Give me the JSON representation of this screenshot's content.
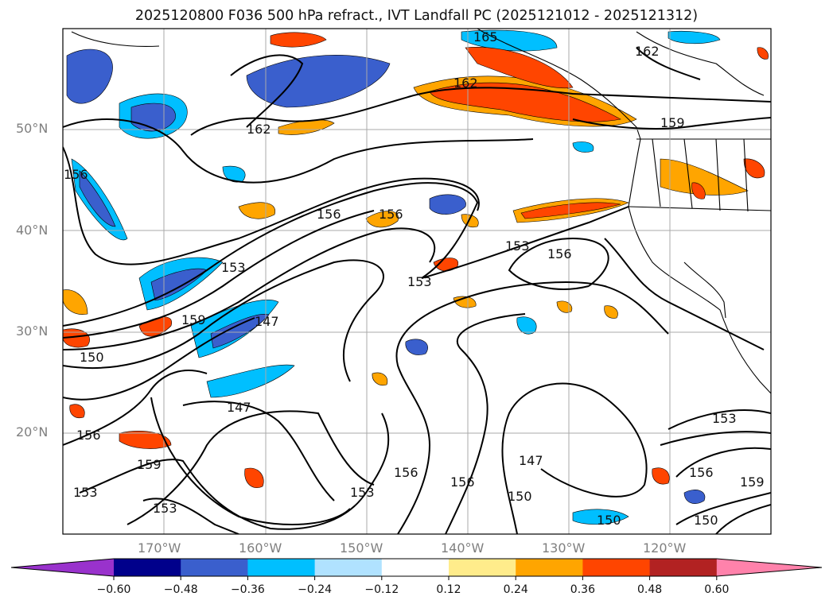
{
  "title": "2025120800 F036 500 hPa refract., IVT Landfall PC (2025121012 - 2025121312)",
  "lat_labels": [
    "50°N",
    "40°N",
    "30°N",
    "20°N"
  ],
  "lon_labels": [
    "170°W",
    "160°W",
    "150°W",
    "140°W",
    "130°W",
    "120°W"
  ],
  "contour_labels": [
    "165",
    "162",
    "162",
    "162",
    "159",
    "159",
    "159",
    "159",
    "156",
    "156",
    "156",
    "156",
    "156",
    "156",
    "156",
    "156",
    "153",
    "153",
    "153",
    "153",
    "153",
    "153",
    "153",
    "150",
    "150",
    "150",
    "150",
    "147",
    "147",
    "147"
  ],
  "colorbar": {
    "ticks": [
      "−0.60",
      "−0.48",
      "−0.36",
      "−0.24",
      "−0.12",
      "0.12",
      "0.24",
      "0.36",
      "0.48",
      "0.60"
    ],
    "colors": [
      "#9932cc",
      "#00008b",
      "#3a5fcd",
      "#00bfff",
      "#b0e2ff",
      "#ffffff",
      "#ffec8b",
      "#ffa500",
      "#ff4500",
      "#b22222",
      "#ff82ab"
    ],
    "levels": [
      -0.6,
      -0.48,
      -0.36,
      -0.24,
      -0.12,
      0.12,
      0.24,
      0.36,
      0.48,
      0.6
    ]
  }
}
